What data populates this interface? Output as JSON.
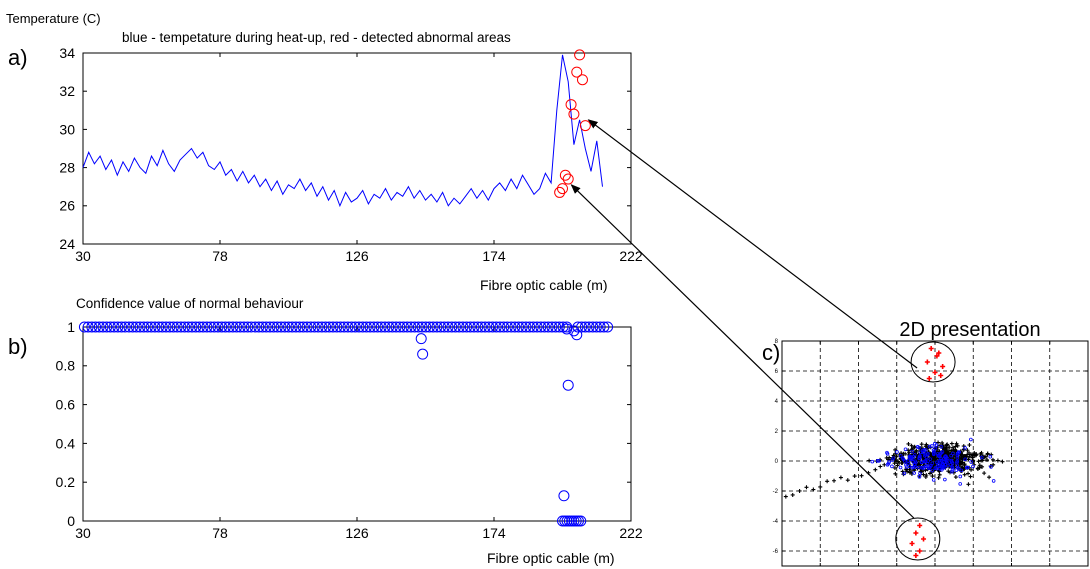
{
  "panels": {
    "a": {
      "letter": "a)",
      "ylabel": "Temperature (C)",
      "title": "blue - tempetature during heat-up, red - detected abnormal areas",
      "xlabel": "Fibre optic cable (m)"
    },
    "b": {
      "letter": "b)",
      "title": "Confidence value of normal behaviour",
      "xlabel": "Fibre optic cable (m)"
    },
    "c": {
      "letter": "c)",
      "title": "2D presentation"
    }
  },
  "colors": {
    "normal": "#0000ff",
    "abnormal": "#ff0000",
    "points2d": "#000000"
  },
  "chart_data": [
    {
      "id": "a",
      "type": "line",
      "title": "blue - tempetature during heat-up, red - detected abnormal areas",
      "xlabel": "Fibre optic cable (m)",
      "ylabel": "Temperature (C)",
      "xlim": [
        30,
        222
      ],
      "ylim": [
        24,
        34
      ],
      "xticks": [
        30,
        78,
        126,
        174,
        222
      ],
      "yticks": [
        24,
        26,
        28,
        30,
        32,
        34
      ],
      "series": [
        {
          "name": "",
          "x": [
            30,
            32,
            34,
            36,
            38,
            40,
            42,
            44,
            46,
            48,
            50,
            52,
            54,
            56,
            58,
            60,
            62,
            64,
            66,
            68,
            70,
            72,
            74,
            76,
            78,
            80,
            82,
            84,
            86,
            88,
            90,
            92,
            94,
            96,
            98,
            100,
            102,
            104,
            106,
            108,
            110,
            112,
            114,
            116,
            118,
            120,
            122,
            124,
            126,
            128,
            130,
            132,
            134,
            136,
            138,
            140,
            142,
            144,
            146,
            148,
            150,
            152,
            154,
            156,
            158,
            160,
            162,
            164,
            166,
            168,
            170,
            172,
            174,
            176,
            178,
            180,
            182,
            184,
            186,
            188,
            190,
            192,
            194,
            196,
            198,
            200,
            202,
            204,
            206,
            208,
            210,
            212
          ],
          "y": [
            28.0,
            28.8,
            28.2,
            28.6,
            27.9,
            28.4,
            27.6,
            28.3,
            27.8,
            28.5,
            28.0,
            27.7,
            28.6,
            28.1,
            28.9,
            28.2,
            27.8,
            28.4,
            28.7,
            29.0,
            28.5,
            28.8,
            28.1,
            27.9,
            28.3,
            27.6,
            27.9,
            27.3,
            27.8,
            27.2,
            27.6,
            27.0,
            27.4,
            26.8,
            27.3,
            26.6,
            27.1,
            26.9,
            27.4,
            26.8,
            27.2,
            26.5,
            27.0,
            26.3,
            26.8,
            26.0,
            26.7,
            26.2,
            26.4,
            26.8,
            26.1,
            26.6,
            26.4,
            26.9,
            26.3,
            26.7,
            26.5,
            27.0,
            26.4,
            26.8,
            26.3,
            26.6,
            26.2,
            26.7,
            26.0,
            26.4,
            26.1,
            26.5,
            26.9,
            26.4,
            26.8,
            26.3,
            26.9,
            27.2,
            26.8,
            27.4,
            26.9,
            27.6,
            27.1,
            26.6,
            26.9,
            27.7,
            27.2,
            31.0,
            33.9,
            32.5,
            29.2,
            30.5,
            29.0,
            27.8,
            29.4,
            27.0
          ]
        },
        {
          "name": "",
          "x": [
            197,
            198,
            199,
            200,
            201,
            202,
            203,
            204,
            205,
            206
          ],
          "y": [
            26.7,
            26.9,
            27.6,
            27.4,
            31.3,
            30.8,
            33.0,
            33.9,
            32.6,
            30.2
          ]
        }
      ]
    },
    {
      "id": "b",
      "type": "scatter",
      "title": "Confidence value of normal behaviour",
      "xlabel": "Fibre optic cable (m)",
      "xlim": [
        30,
        222
      ],
      "ylim": [
        0,
        1
      ],
      "xticks": [
        30,
        78,
        126,
        174,
        222
      ],
      "yticks": [
        0,
        0.2,
        0.4,
        0.6,
        0.8,
        1
      ],
      "ytick_labels": [
        "0",
        "0.2",
        "0.4",
        "0.6",
        "0.8",
        "1"
      ],
      "series": [
        {
          "name": "",
          "x": [
            148.5,
            149,
            200,
            198.5,
            199.5,
            202,
            203
          ],
          "y": [
            0.94,
            0.86,
            0.7,
            0.13,
            0.99,
            0.98,
            0.96
          ]
        }
      ]
    },
    {
      "id": "c",
      "type": "scatter",
      "title": "2D presentation",
      "xlim": [
        -4,
        4
      ],
      "ylim": [
        -7,
        8
      ],
      "xticks": [
        -4,
        -3,
        -2,
        -1,
        0,
        1,
        2,
        3,
        4
      ],
      "yticks": [
        -6,
        -4,
        -2,
        0,
        2,
        4,
        6,
        8
      ],
      "grid": true,
      "series": [
        {
          "name": "",
          "x": [
            -0.1,
            0.1,
            -0.2,
            0.2,
            0.0,
            -0.15,
            0.15,
            0.05
          ],
          "y": [
            7.5,
            7.2,
            6.6,
            6.3,
            5.9,
            5.5,
            5.7,
            7.0
          ]
        },
        {
          "name": "",
          "x": [
            -0.4,
            -0.5,
            -0.3,
            -0.6,
            -0.4,
            -0.5
          ],
          "y": [
            -4.3,
            -4.8,
            -5.2,
            -5.5,
            -6.0,
            -6.3
          ]
        }
      ]
    }
  ]
}
